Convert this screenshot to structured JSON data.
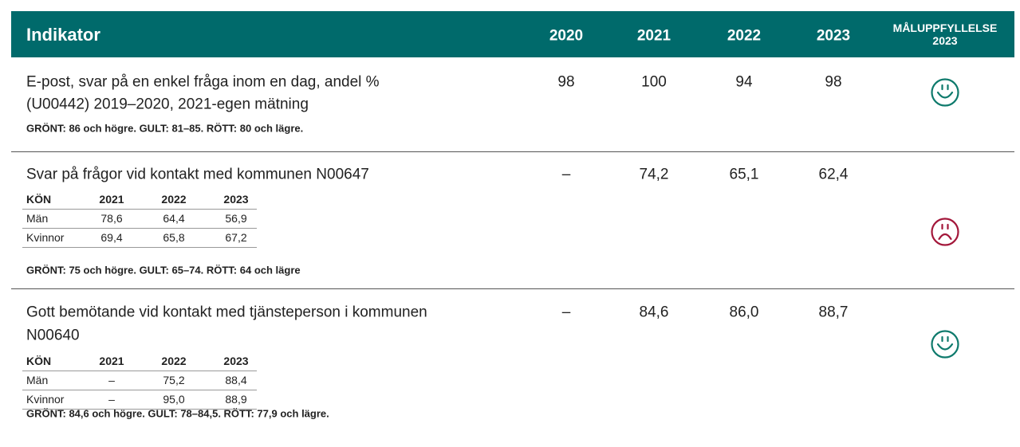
{
  "header": {
    "indicator": "Indikator",
    "years": [
      "2020",
      "2021",
      "2022",
      "2023"
    ],
    "goal": [
      "MÅLUPPFYLLELSE",
      "2023"
    ]
  },
  "rows": [
    {
      "title": [
        "E-post, svar på en enkel fråga inom en dag, andel %",
        "(U00442) 2019–2020, 2021-egen mätning"
      ],
      "values": [
        "98",
        "100",
        "94",
        "98"
      ],
      "criteria": "GRÖNT: 86 och högre.  GULT: 81–85.  RÖTT: 80 och lägre.",
      "face": "happy",
      "color": "#0e7a6c"
    },
    {
      "title": [
        "Svar på frågor vid kontakt med kommunen N00647"
      ],
      "values": [
        "–",
        "74,2",
        "65,1",
        "62,4"
      ],
      "table": {
        "header": [
          "KÖN",
          "2021",
          "2022",
          "2023"
        ],
        "rows": [
          [
            "Män",
            "78,6",
            "64,4",
            "56,9"
          ],
          [
            "Kvinnor",
            "69,4",
            "65,8",
            "67,2"
          ]
        ]
      },
      "criteria": "GRÖNT: 75 och högre.  GULT: 65–74.  RÖTT: 64 och lägre",
      "face": "sad",
      "color": "#a3173a"
    },
    {
      "title": [
        "Gott bemötande vid kontakt med tjänsteperson i kommunen",
        "N00640"
      ],
      "values": [
        "–",
        "84,6",
        "86,0",
        "88,7"
      ],
      "table": {
        "header": [
          "KÖN",
          "2021",
          "2022",
          "2023"
        ],
        "rows": [
          [
            "Män",
            "–",
            "75,2",
            "88,4"
          ],
          [
            "Kvinnor",
            "–",
            "95,0",
            "88,9"
          ]
        ]
      },
      "criteria": "GRÖNT: 84,6 och högre.  GULT: 78–84,5.  RÖTT: 77,9 och lägre.",
      "face": "happy",
      "color": "#0e7a6c"
    }
  ]
}
